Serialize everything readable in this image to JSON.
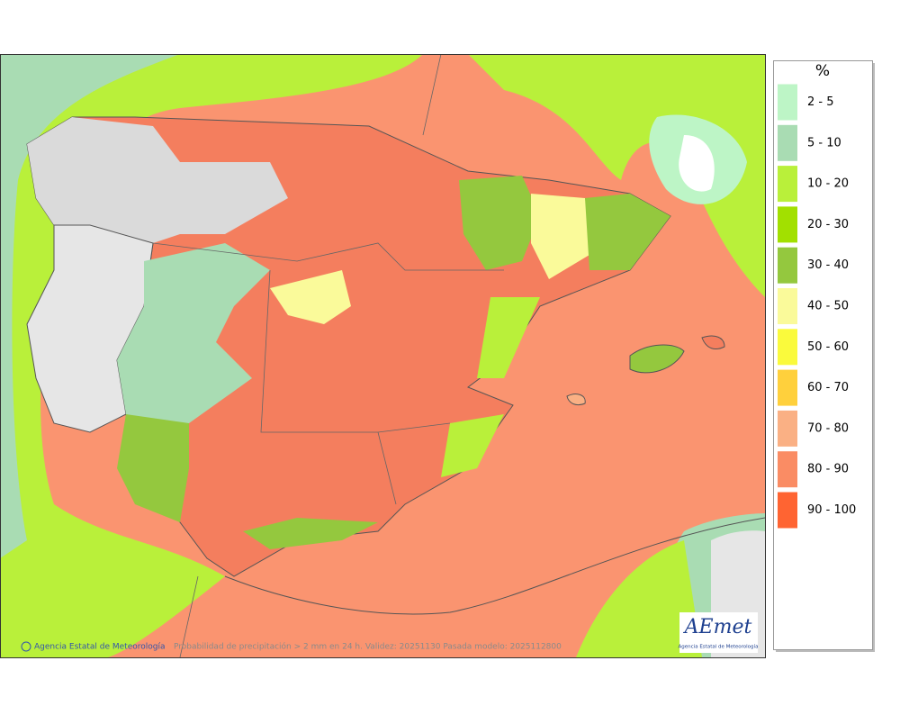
{
  "legend": {
    "title": "%",
    "items": [
      {
        "label": "2 - 5",
        "color": "#bdf5c6"
      },
      {
        "label": "5 - 10",
        "color": "#a9dcb3"
      },
      {
        "label": "10 - 20",
        "color": "#b9f03a"
      },
      {
        "label": "20 - 30",
        "color": "#a2e000"
      },
      {
        "label": "30 - 40",
        "color": "#94c83e"
      },
      {
        "label": "40 - 50",
        "color": "#fafa9a"
      },
      {
        "label": "50 - 60",
        "color": "#fafa3c"
      },
      {
        "label": "60 - 70",
        "color": "#ffd03c"
      },
      {
        "label": "70 - 80",
        "color": "#fab084"
      },
      {
        "label": "80 - 90",
        "color": "#fa8c64"
      },
      {
        "label": "90 - 100",
        "color": "#ff6432"
      }
    ]
  },
  "footer": {
    "agency": "Agencia Estatal de Meteorología",
    "caption": "Probabilidad de precipitación > 2 mm en 24 h. Validez: 20251130 Pasada modelo: 2025112800"
  },
  "logo": {
    "name": "AEmet",
    "subtitle": "Agencia Estatal de Meteorología"
  }
}
